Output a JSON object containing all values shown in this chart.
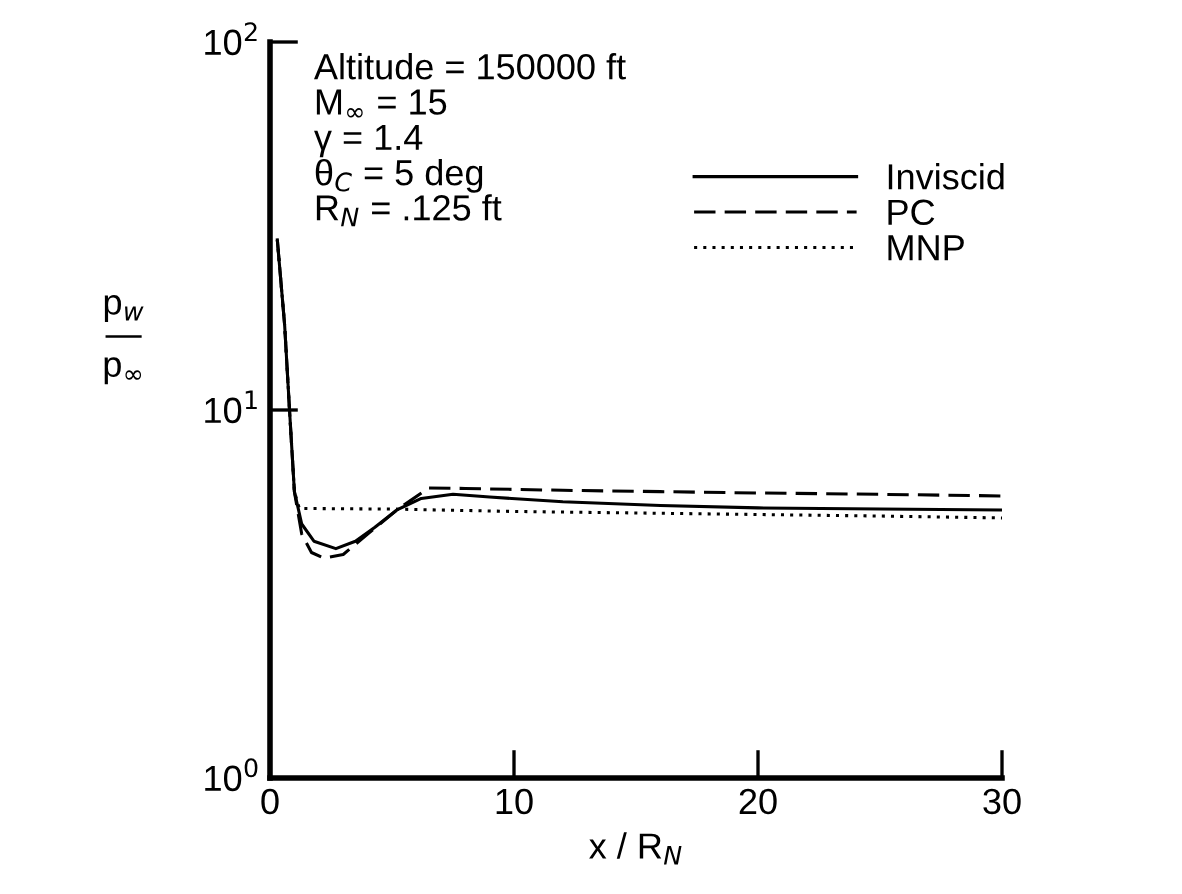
{
  "chart_data": {
    "type": "line",
    "xlabel": "x / R$_{N}$",
    "ylabel": "p$_{w}$\n—\np$_{∞}$",
    "log": "y",
    "xlim": [
      0,
      30
    ],
    "ylim": [
      1,
      100
    ],
    "xticks": [
      0,
      10,
      20,
      30
    ],
    "yticks": [
      {
        "value": 1,
        "label": "10$^{0}$"
      },
      {
        "value": 10,
        "label": "10$^{1}$"
      },
      {
        "value": 100,
        "label": "10$^{2}$"
      }
    ],
    "grid": false,
    "legend": "top right",
    "marker": "none",
    "annotations": [
      "Altitude = 150000 ft",
      "M$_{∞}$ = 15",
      "γ = 1.4",
      "θ$_{C}$ = 5 deg",
      "R$_{N}$ = .125 ft"
    ],
    "series": [
      {
        "name": "Inviscid",
        "color": "#000000",
        "line_style": "solid",
        "x": [
          0.3,
          0.6,
          0.8,
          1.0,
          1.3,
          1.8,
          2.7,
          3.5,
          4.3,
          5.2,
          6.2,
          7.5,
          9,
          12,
          16,
          20,
          25,
          30
        ],
        "values": [
          29,
          17,
          10,
          6.0,
          4.9,
          4.4,
          4.2,
          4.4,
          4.8,
          5.35,
          5.75,
          5.9,
          5.8,
          5.63,
          5.5,
          5.42,
          5.38,
          5.35
        ]
      },
      {
        "name": "PC",
        "color": "#000000",
        "line_style": "dashed",
        "x": [
          0.3,
          0.6,
          0.8,
          1.0,
          1.3,
          1.7,
          2.2,
          3.0,
          4.0,
          5.2,
          6.5,
          8,
          12,
          16,
          20,
          25,
          30
        ],
        "values": [
          29,
          17,
          10,
          6.0,
          4.6,
          4.1,
          3.96,
          4.05,
          4.6,
          5.35,
          6.14,
          6.12,
          6.05,
          6.0,
          5.95,
          5.9,
          5.84
        ]
      },
      {
        "name": "MNP",
        "color": "#000000",
        "line_style": "dotted",
        "x": [
          0.3,
          0.6,
          0.8,
          1.0,
          1.2,
          5,
          10,
          15,
          20,
          25,
          30
        ],
        "values": [
          29,
          17,
          10,
          6.0,
          5.4,
          5.38,
          5.3,
          5.25,
          5.2,
          5.15,
          5.09
        ]
      }
    ]
  }
}
